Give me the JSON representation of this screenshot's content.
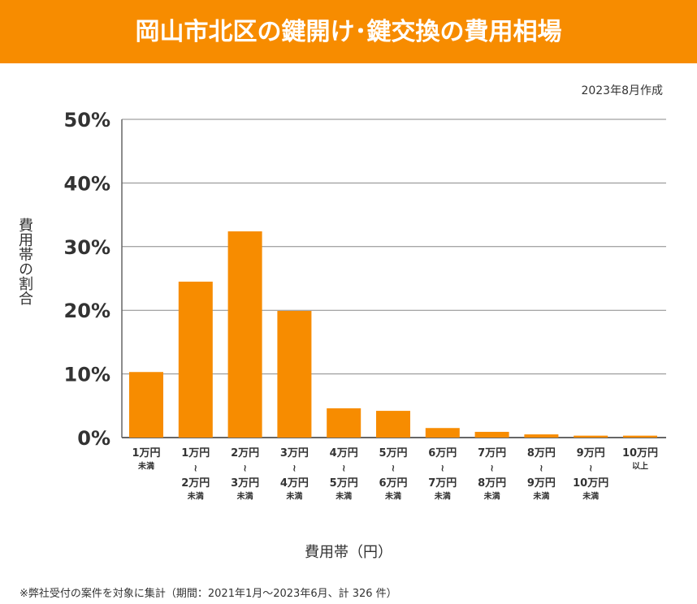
{
  "header": {
    "title": "岡山市北区の鍵開け･鍵交換の費用相場"
  },
  "date_note": "2023年8月作成",
  "footnote": "※弊社受付の案件を対象に集計（期間：2021年1月～2023年6月、計 326 件）",
  "colors": {
    "bar": "#f78c00",
    "header": "#f78c00"
  },
  "chart_data": {
    "type": "bar",
    "ylabel": "費用帯の割合",
    "xlabel": "費用帯（円）",
    "ylim": [
      0,
      50
    ],
    "yticks": [
      "0%",
      "10%",
      "20%",
      "30%",
      "40%",
      "50%"
    ],
    "grid": true,
    "categories": [
      [
        "1万円",
        "未満"
      ],
      [
        "1万円",
        "～",
        "2万円",
        "未満"
      ],
      [
        "2万円",
        "～",
        "3万円",
        "未満"
      ],
      [
        "3万円",
        "～",
        "4万円",
        "未満"
      ],
      [
        "4万円",
        "～",
        "5万円",
        "未満"
      ],
      [
        "5万円",
        "～",
        "6万円",
        "未満"
      ],
      [
        "6万円",
        "～",
        "7万円",
        "未満"
      ],
      [
        "7万円",
        "～",
        "8万円",
        "未満"
      ],
      [
        "8万円",
        "～",
        "9万円",
        "未満"
      ],
      [
        "9万円",
        "～",
        "10万円",
        "未満"
      ],
      [
        "10万円",
        "以上"
      ]
    ],
    "values": [
      10.3,
      24.5,
      32.4,
      19.9,
      4.6,
      4.2,
      1.5,
      0.9,
      0.5,
      0.3,
      0.3
    ]
  }
}
